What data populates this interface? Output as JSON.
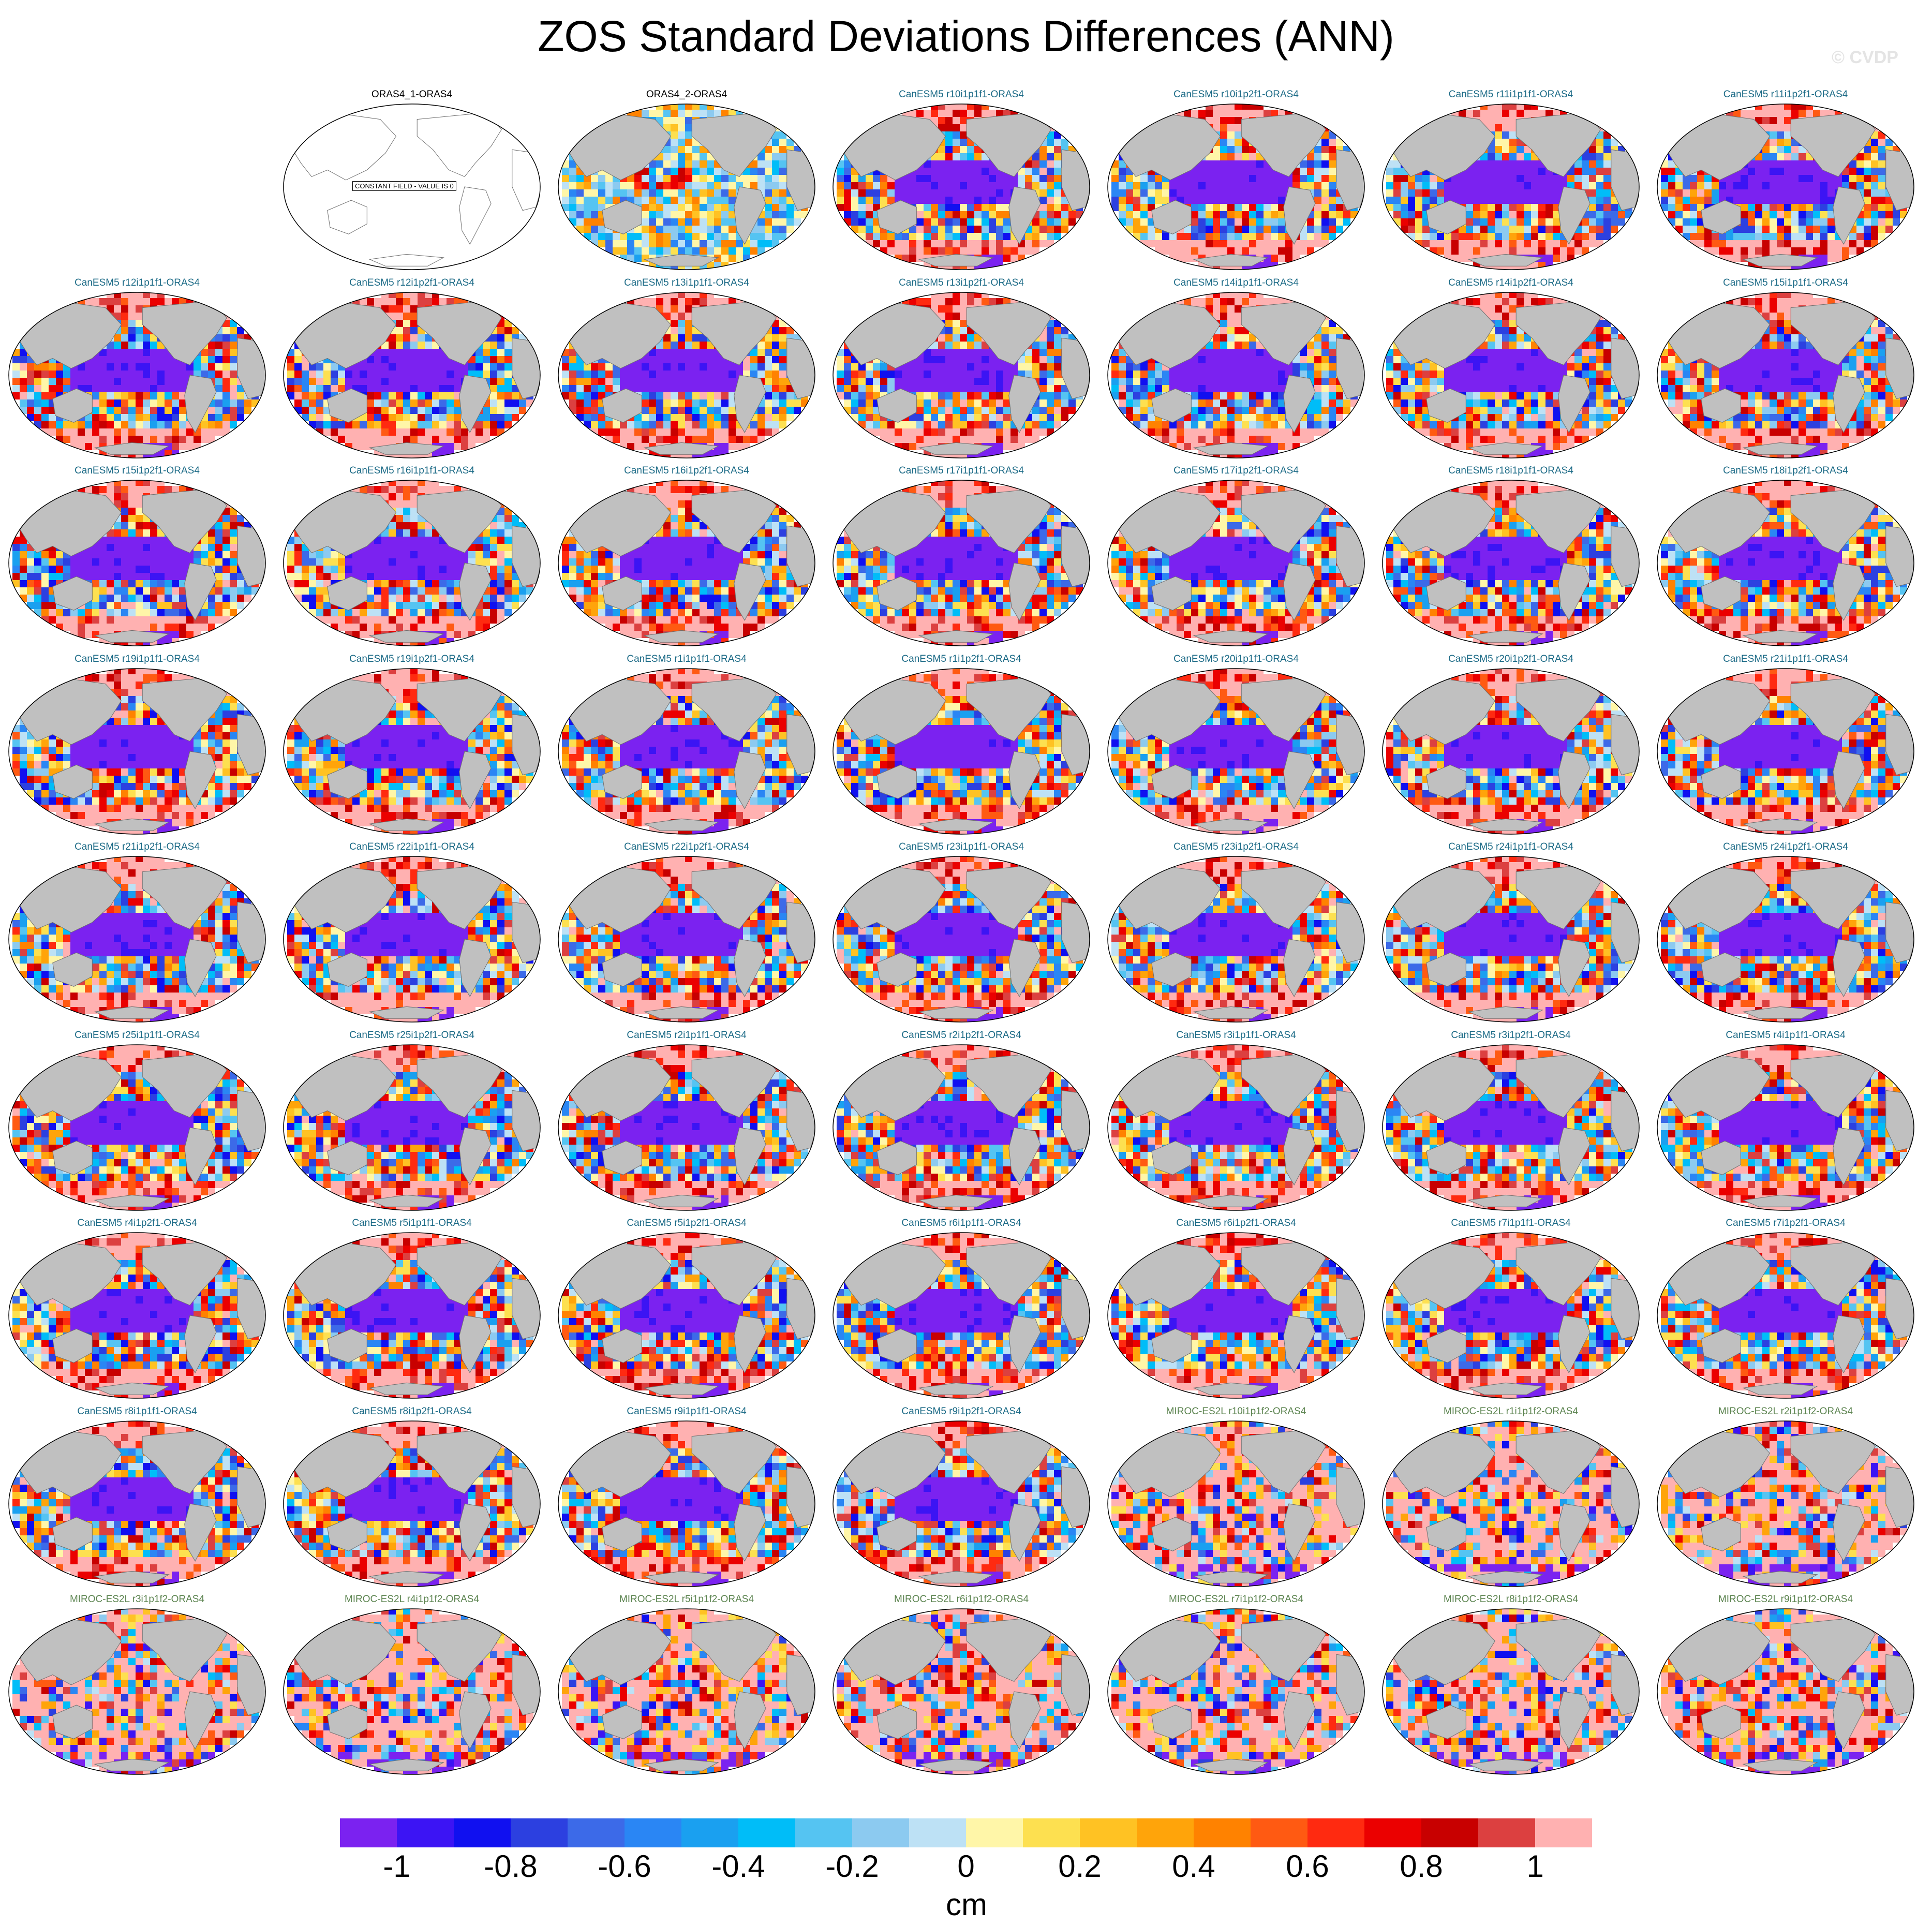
{
  "title": "ZOS Standard Deviations Differences (ANN)",
  "credit": "© CVDP",
  "constant_field_label": "CONSTANT FIELD - VALUE IS 0",
  "units": "cm",
  "colorbar": {
    "tick_labels": [
      "-1",
      "-0.8",
      "-0.6",
      "-0.4",
      "-0.2",
      "0",
      "0.2",
      "0.4",
      "0.6",
      "0.8",
      "1"
    ],
    "colors": [
      "#7b22f0",
      "#3c14f4",
      "#1010f0",
      "#2c40e0",
      "#3c6ae8",
      "#2a86f4",
      "#1aa0f0",
      "#00bdf8",
      "#55c4f2",
      "#8ccaf0",
      "#bde1f5",
      "#fff6a8",
      "#fde050",
      "#ffc223",
      "#ffa40a",
      "#ff8200",
      "#ff5a12",
      "#ff2a10",
      "#eb0000",
      "#c80000",
      "#dc4040",
      "#ffb1b1"
    ]
  },
  "colors": {
    "land": "#c0c0c0",
    "ocean_background": "#ffffff",
    "outline": "#000000"
  },
  "panels": [
    {
      "title": "ORAS4_1-ORAS4",
      "group": "obs"
    },
    {
      "title": "ORAS4_2-ORAS4",
      "group": "obs"
    },
    {
      "title": "CanESM5 r10i1p1f1-ORAS4",
      "group": "canesm"
    },
    {
      "title": "CanESM5 r10i1p2f1-ORAS4",
      "group": "canesm"
    },
    {
      "title": "CanESM5 r11i1p1f1-ORAS4",
      "group": "canesm"
    },
    {
      "title": "CanESM5 r11i1p2f1-ORAS4",
      "group": "canesm"
    },
    {
      "title": "CanESM5 r12i1p1f1-ORAS4",
      "group": "canesm"
    },
    {
      "title": "CanESM5 r12i1p2f1-ORAS4",
      "group": "canesm"
    },
    {
      "title": "CanESM5 r13i1p1f1-ORAS4",
      "group": "canesm"
    },
    {
      "title": "CanESM5 r13i1p2f1-ORAS4",
      "group": "canesm"
    },
    {
      "title": "CanESM5 r14i1p1f1-ORAS4",
      "group": "canesm"
    },
    {
      "title": "CanESM5 r14i1p2f1-ORAS4",
      "group": "canesm"
    },
    {
      "title": "CanESM5 r15i1p1f1-ORAS4",
      "group": "canesm"
    },
    {
      "title": "CanESM5 r15i1p2f1-ORAS4",
      "group": "canesm"
    },
    {
      "title": "CanESM5 r16i1p1f1-ORAS4",
      "group": "canesm"
    },
    {
      "title": "CanESM5 r16i1p2f1-ORAS4",
      "group": "canesm"
    },
    {
      "title": "CanESM5 r17i1p1f1-ORAS4",
      "group": "canesm"
    },
    {
      "title": "CanESM5 r17i1p2f1-ORAS4",
      "group": "canesm"
    },
    {
      "title": "CanESM5 r18i1p1f1-ORAS4",
      "group": "canesm"
    },
    {
      "title": "CanESM5 r18i1p2f1-ORAS4",
      "group": "canesm"
    },
    {
      "title": "CanESM5 r19i1p1f1-ORAS4",
      "group": "canesm"
    },
    {
      "title": "CanESM5 r19i1p2f1-ORAS4",
      "group": "canesm"
    },
    {
      "title": "CanESM5 r1i1p1f1-ORAS4",
      "group": "canesm"
    },
    {
      "title": "CanESM5 r1i1p2f1-ORAS4",
      "group": "canesm"
    },
    {
      "title": "CanESM5 r20i1p1f1-ORAS4",
      "group": "canesm"
    },
    {
      "title": "CanESM5 r20i1p2f1-ORAS4",
      "group": "canesm"
    },
    {
      "title": "CanESM5 r21i1p1f1-ORAS4",
      "group": "canesm"
    },
    {
      "title": "CanESM5 r21i1p2f1-ORAS4",
      "group": "canesm"
    },
    {
      "title": "CanESM5 r22i1p1f1-ORAS4",
      "group": "canesm"
    },
    {
      "title": "CanESM5 r22i1p2f1-ORAS4",
      "group": "canesm"
    },
    {
      "title": "CanESM5 r23i1p1f1-ORAS4",
      "group": "canesm"
    },
    {
      "title": "CanESM5 r23i1p2f1-ORAS4",
      "group": "canesm"
    },
    {
      "title": "CanESM5 r24i1p1f1-ORAS4",
      "group": "canesm"
    },
    {
      "title": "CanESM5 r24i1p2f1-ORAS4",
      "group": "canesm"
    },
    {
      "title": "CanESM5 r25i1p1f1-ORAS4",
      "group": "canesm"
    },
    {
      "title": "CanESM5 r25i1p2f1-ORAS4",
      "group": "canesm"
    },
    {
      "title": "CanESM5 r2i1p1f1-ORAS4",
      "group": "canesm"
    },
    {
      "title": "CanESM5 r2i1p2f1-ORAS4",
      "group": "canesm"
    },
    {
      "title": "CanESM5 r3i1p1f1-ORAS4",
      "group": "canesm"
    },
    {
      "title": "CanESM5 r3i1p2f1-ORAS4",
      "group": "canesm"
    },
    {
      "title": "CanESM5 r4i1p1f1-ORAS4",
      "group": "canesm"
    },
    {
      "title": "CanESM5 r4i1p2f1-ORAS4",
      "group": "canesm"
    },
    {
      "title": "CanESM5 r5i1p1f1-ORAS4",
      "group": "canesm"
    },
    {
      "title": "CanESM5 r5i1p2f1-ORAS4",
      "group": "canesm"
    },
    {
      "title": "CanESM5 r6i1p1f1-ORAS4",
      "group": "canesm"
    },
    {
      "title": "CanESM5 r6i1p2f1-ORAS4",
      "group": "canesm"
    },
    {
      "title": "CanESM5 r7i1p1f1-ORAS4",
      "group": "canesm"
    },
    {
      "title": "CanESM5 r7i1p2f1-ORAS4",
      "group": "canesm"
    },
    {
      "title": "CanESM5 r8i1p1f1-ORAS4",
      "group": "canesm"
    },
    {
      "title": "CanESM5 r8i1p2f1-ORAS4",
      "group": "canesm"
    },
    {
      "title": "CanESM5 r9i1p1f1-ORAS4",
      "group": "canesm"
    },
    {
      "title": "CanESM5 r9i1p2f1-ORAS4",
      "group": "canesm"
    },
    {
      "title": "MIROC-ES2L r10i1p1f2-ORAS4",
      "group": "miroc"
    },
    {
      "title": "MIROC-ES2L r1i1p1f2-ORAS4",
      "group": "miroc"
    },
    {
      "title": "MIROC-ES2L r2i1p1f2-ORAS4",
      "group": "miroc"
    },
    {
      "title": "MIROC-ES2L r3i1p1f2-ORAS4",
      "group": "miroc"
    },
    {
      "title": "MIROC-ES2L r4i1p1f2-ORAS4",
      "group": "miroc"
    },
    {
      "title": "MIROC-ES2L r5i1p1f2-ORAS4",
      "group": "miroc"
    },
    {
      "title": "MIROC-ES2L r6i1p1f2-ORAS4",
      "group": "miroc"
    },
    {
      "title": "MIROC-ES2L r7i1p1f2-ORAS4",
      "group": "miroc"
    },
    {
      "title": "MIROC-ES2L r8i1p1f2-ORAS4",
      "group": "miroc"
    },
    {
      "title": "MIROC-ES2L r9i1p1f2-ORAS4",
      "group": "miroc"
    }
  ]
}
